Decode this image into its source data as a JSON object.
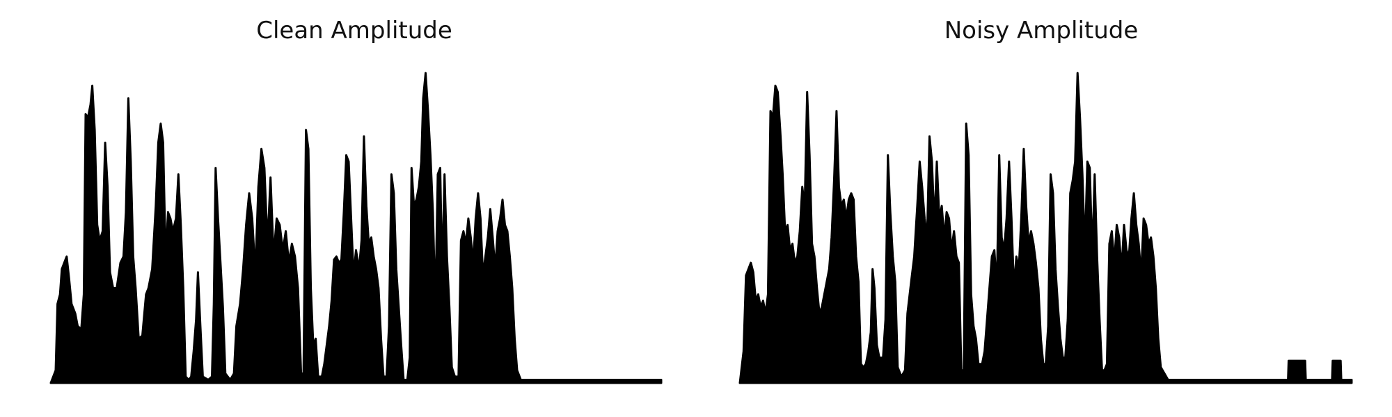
{
  "chart_data": [
    {
      "type": "area",
      "title": "Clean Amplitude",
      "xlabel": "",
      "ylabel": "",
      "grid": false,
      "axes_visible": false,
      "x_range": [
        0,
        1
      ],
      "ylim": [
        0,
        1
      ],
      "color": "#000000",
      "envelope": [
        [
          0.0,
          0.0
        ],
        [
          0.008,
          0.04
        ],
        [
          0.011,
          0.25
        ],
        [
          0.015,
          0.28
        ],
        [
          0.018,
          0.36
        ],
        [
          0.022,
          0.38
        ],
        [
          0.026,
          0.4
        ],
        [
          0.03,
          0.33
        ],
        [
          0.034,
          0.25
        ],
        [
          0.04,
          0.22
        ],
        [
          0.044,
          0.18
        ],
        [
          0.05,
          0.17
        ],
        [
          0.054,
          0.28
        ],
        [
          0.057,
          0.85
        ],
        [
          0.061,
          0.84
        ],
        [
          0.065,
          0.88
        ],
        [
          0.068,
          0.94
        ],
        [
          0.072,
          0.8
        ],
        [
          0.076,
          0.5
        ],
        [
          0.08,
          0.45
        ],
        [
          0.085,
          0.48
        ],
        [
          0.089,
          0.76
        ],
        [
          0.093,
          0.62
        ],
        [
          0.097,
          0.35
        ],
        [
          0.102,
          0.3
        ],
        [
          0.108,
          0.3
        ],
        [
          0.114,
          0.38
        ],
        [
          0.119,
          0.4
        ],
        [
          0.123,
          0.54
        ],
        [
          0.127,
          0.9
        ],
        [
          0.131,
          0.7
        ],
        [
          0.135,
          0.4
        ],
        [
          0.139,
          0.3
        ],
        [
          0.144,
          0.14
        ],
        [
          0.15,
          0.15
        ],
        [
          0.156,
          0.28
        ],
        [
          0.16,
          0.3
        ],
        [
          0.166,
          0.36
        ],
        [
          0.172,
          0.56
        ],
        [
          0.176,
          0.76
        ],
        [
          0.18,
          0.82
        ],
        [
          0.184,
          0.76
        ],
        [
          0.188,
          0.4
        ],
        [
          0.192,
          0.54
        ],
        [
          0.196,
          0.52
        ],
        [
          0.2,
          0.48
        ],
        [
          0.205,
          0.52
        ],
        [
          0.209,
          0.66
        ],
        [
          0.213,
          0.5
        ],
        [
          0.217,
          0.3
        ],
        [
          0.221,
          0.02
        ],
        [
          0.226,
          0.01
        ],
        [
          0.23,
          0.02
        ],
        [
          0.234,
          0.1
        ],
        [
          0.238,
          0.2
        ],
        [
          0.241,
          0.35
        ],
        [
          0.245,
          0.18
        ],
        [
          0.249,
          0.02
        ],
        [
          0.258,
          0.01
        ],
        [
          0.264,
          0.02
        ],
        [
          0.267,
          0.25
        ],
        [
          0.27,
          0.68
        ],
        [
          0.274,
          0.52
        ],
        [
          0.278,
          0.38
        ],
        [
          0.282,
          0.24
        ],
        [
          0.286,
          0.03
        ],
        [
          0.294,
          0.01
        ],
        [
          0.3,
          0.03
        ],
        [
          0.304,
          0.18
        ],
        [
          0.31,
          0.25
        ],
        [
          0.315,
          0.36
        ],
        [
          0.32,
          0.5
        ],
        [
          0.325,
          0.6
        ],
        [
          0.33,
          0.52
        ],
        [
          0.335,
          0.35
        ],
        [
          0.34,
          0.62
        ],
        [
          0.345,
          0.74
        ],
        [
          0.35,
          0.68
        ],
        [
          0.355,
          0.44
        ],
        [
          0.36,
          0.65
        ],
        [
          0.365,
          0.4
        ],
        [
          0.37,
          0.52
        ],
        [
          0.375,
          0.5
        ],
        [
          0.38,
          0.42
        ],
        [
          0.385,
          0.48
        ],
        [
          0.39,
          0.38
        ],
        [
          0.395,
          0.44
        ],
        [
          0.4,
          0.4
        ],
        [
          0.405,
          0.3
        ],
        [
          0.41,
          0.03
        ],
        [
          0.414,
          0.03
        ],
        [
          0.418,
          0.8
        ],
        [
          0.422,
          0.74
        ],
        [
          0.426,
          0.3
        ],
        [
          0.43,
          0.12
        ],
        [
          0.434,
          0.14
        ],
        [
          0.438,
          0.02
        ],
        [
          0.444,
          0.02
        ],
        [
          0.448,
          0.06
        ],
        [
          0.452,
          0.12
        ],
        [
          0.456,
          0.18
        ],
        [
          0.46,
          0.26
        ],
        [
          0.464,
          0.39
        ],
        [
          0.468,
          0.4
        ],
        [
          0.472,
          0.38
        ],
        [
          0.476,
          0.39
        ],
        [
          0.48,
          0.54
        ],
        [
          0.484,
          0.72
        ],
        [
          0.488,
          0.7
        ],
        [
          0.492,
          0.52
        ],
        [
          0.496,
          0.34
        ],
        [
          0.5,
          0.42
        ],
        [
          0.505,
          0.36
        ],
        [
          0.509,
          0.45
        ],
        [
          0.513,
          0.78
        ],
        [
          0.517,
          0.56
        ],
        [
          0.521,
          0.44
        ],
        [
          0.525,
          0.46
        ],
        [
          0.529,
          0.4
        ],
        [
          0.533,
          0.36
        ],
        [
          0.537,
          0.3
        ],
        [
          0.541,
          0.14
        ],
        [
          0.545,
          0.02
        ],
        [
          0.55,
          0.02
        ],
        [
          0.554,
          0.18
        ],
        [
          0.558,
          0.66
        ],
        [
          0.562,
          0.6
        ],
        [
          0.566,
          0.36
        ],
        [
          0.57,
          0.24
        ],
        [
          0.574,
          0.12
        ],
        [
          0.578,
          0.01
        ],
        [
          0.584,
          0.01
        ],
        [
          0.588,
          0.08
        ],
        [
          0.591,
          0.68
        ],
        [
          0.595,
          0.56
        ],
        [
          0.599,
          0.58
        ],
        [
          0.603,
          0.62
        ],
        [
          0.607,
          0.7
        ],
        [
          0.61,
          0.9
        ],
        [
          0.614,
          0.98
        ],
        [
          0.618,
          0.86
        ],
        [
          0.622,
          0.72
        ],
        [
          0.626,
          0.54
        ],
        [
          0.63,
          0.24
        ],
        [
          0.634,
          0.66
        ],
        [
          0.638,
          0.68
        ],
        [
          0.641,
          0.34
        ],
        [
          0.645,
          0.66
        ],
        [
          0.649,
          0.4
        ],
        [
          0.653,
          0.24
        ],
        [
          0.657,
          0.05
        ],
        [
          0.662,
          0.02
        ],
        [
          0.668,
          0.02
        ],
        [
          0.672,
          0.45
        ],
        [
          0.676,
          0.48
        ],
        [
          0.68,
          0.44
        ],
        [
          0.684,
          0.52
        ],
        [
          0.688,
          0.46
        ],
        [
          0.692,
          0.38
        ],
        [
          0.696,
          0.52
        ],
        [
          0.7,
          0.6
        ],
        [
          0.704,
          0.52
        ],
        [
          0.708,
          0.34
        ],
        [
          0.712,
          0.4
        ],
        [
          0.716,
          0.46
        ],
        [
          0.72,
          0.55
        ],
        [
          0.724,
          0.46
        ],
        [
          0.728,
          0.36
        ],
        [
          0.732,
          0.48
        ],
        [
          0.736,
          0.52
        ],
        [
          0.74,
          0.58
        ],
        [
          0.744,
          0.5
        ],
        [
          0.748,
          0.48
        ],
        [
          0.752,
          0.4
        ],
        [
          0.756,
          0.3
        ],
        [
          0.76,
          0.14
        ],
        [
          0.764,
          0.04
        ],
        [
          0.77,
          0.01
        ],
        [
          0.78,
          0.01
        ],
        [
          0.8,
          0.01
        ],
        [
          0.85,
          0.01
        ],
        [
          0.9,
          0.01
        ],
        [
          0.95,
          0.01
        ],
        [
          1.0,
          0.01
        ]
      ]
    },
    {
      "type": "area",
      "title": "Noisy Amplitude",
      "xlabel": "",
      "ylabel": "",
      "grid": false,
      "axes_visible": false,
      "x_range": [
        0,
        1
      ],
      "ylim": [
        0,
        1
      ],
      "color": "#000000",
      "envelope": [
        [
          0.0,
          0.0
        ],
        [
          0.006,
          0.1
        ],
        [
          0.01,
          0.34
        ],
        [
          0.014,
          0.36
        ],
        [
          0.018,
          0.38
        ],
        [
          0.022,
          0.35
        ],
        [
          0.026,
          0.26
        ],
        [
          0.03,
          0.28
        ],
        [
          0.034,
          0.24
        ],
        [
          0.038,
          0.26
        ],
        [
          0.042,
          0.22
        ],
        [
          0.046,
          0.28
        ],
        [
          0.05,
          0.86
        ],
        [
          0.054,
          0.84
        ],
        [
          0.058,
          0.94
        ],
        [
          0.062,
          0.92
        ],
        [
          0.066,
          0.8
        ],
        [
          0.07,
          0.66
        ],
        [
          0.074,
          0.48
        ],
        [
          0.078,
          0.5
        ],
        [
          0.082,
          0.42
        ],
        [
          0.086,
          0.44
        ],
        [
          0.09,
          0.38
        ],
        [
          0.094,
          0.4
        ],
        [
          0.098,
          0.48
        ],
        [
          0.102,
          0.62
        ],
        [
          0.106,
          0.56
        ],
        [
          0.11,
          0.92
        ],
        [
          0.114,
          0.72
        ],
        [
          0.118,
          0.44
        ],
        [
          0.122,
          0.4
        ],
        [
          0.126,
          0.3
        ],
        [
          0.13,
          0.22
        ],
        [
          0.134,
          0.24
        ],
        [
          0.138,
          0.28
        ],
        [
          0.142,
          0.32
        ],
        [
          0.146,
          0.36
        ],
        [
          0.15,
          0.46
        ],
        [
          0.154,
          0.64
        ],
        [
          0.158,
          0.86
        ],
        [
          0.162,
          0.62
        ],
        [
          0.166,
          0.56
        ],
        [
          0.17,
          0.58
        ],
        [
          0.174,
          0.52
        ],
        [
          0.178,
          0.58
        ],
        [
          0.182,
          0.6
        ],
        [
          0.186,
          0.58
        ],
        [
          0.19,
          0.4
        ],
        [
          0.194,
          0.32
        ],
        [
          0.198,
          0.06
        ],
        [
          0.202,
          0.05
        ],
        [
          0.206,
          0.06
        ],
        [
          0.21,
          0.1
        ],
        [
          0.214,
          0.16
        ],
        [
          0.217,
          0.36
        ],
        [
          0.22,
          0.3
        ],
        [
          0.224,
          0.12
        ],
        [
          0.228,
          0.08
        ],
        [
          0.234,
          0.08
        ],
        [
          0.238,
          0.2
        ],
        [
          0.242,
          0.72
        ],
        [
          0.246,
          0.54
        ],
        [
          0.25,
          0.4
        ],
        [
          0.254,
          0.32
        ],
        [
          0.258,
          0.05
        ],
        [
          0.264,
          0.02
        ],
        [
          0.27,
          0.04
        ],
        [
          0.274,
          0.22
        ],
        [
          0.28,
          0.32
        ],
        [
          0.285,
          0.4
        ],
        [
          0.29,
          0.56
        ],
        [
          0.294,
          0.7
        ],
        [
          0.298,
          0.62
        ],
        [
          0.302,
          0.52
        ],
        [
          0.306,
          0.46
        ],
        [
          0.31,
          0.78
        ],
        [
          0.314,
          0.7
        ],
        [
          0.318,
          0.5
        ],
        [
          0.322,
          0.7
        ],
        [
          0.326,
          0.52
        ],
        [
          0.33,
          0.56
        ],
        [
          0.334,
          0.46
        ],
        [
          0.338,
          0.54
        ],
        [
          0.342,
          0.52
        ],
        [
          0.346,
          0.42
        ],
        [
          0.35,
          0.48
        ],
        [
          0.354,
          0.4
        ],
        [
          0.358,
          0.38
        ],
        [
          0.362,
          0.04
        ],
        [
          0.366,
          0.04
        ],
        [
          0.37,
          0.82
        ],
        [
          0.374,
          0.72
        ],
        [
          0.378,
          0.28
        ],
        [
          0.382,
          0.18
        ],
        [
          0.386,
          0.14
        ],
        [
          0.39,
          0.06
        ],
        [
          0.396,
          0.06
        ],
        [
          0.4,
          0.1
        ],
        [
          0.404,
          0.2
        ],
        [
          0.408,
          0.3
        ],
        [
          0.412,
          0.4
        ],
        [
          0.416,
          0.42
        ],
        [
          0.42,
          0.3
        ],
        [
          0.424,
          0.72
        ],
        [
          0.428,
          0.46
        ],
        [
          0.432,
          0.42
        ],
        [
          0.436,
          0.52
        ],
        [
          0.44,
          0.7
        ],
        [
          0.444,
          0.52
        ],
        [
          0.448,
          0.3
        ],
        [
          0.452,
          0.4
        ],
        [
          0.456,
          0.36
        ],
        [
          0.46,
          0.52
        ],
        [
          0.464,
          0.74
        ],
        [
          0.468,
          0.56
        ],
        [
          0.472,
          0.44
        ],
        [
          0.476,
          0.48
        ],
        [
          0.48,
          0.44
        ],
        [
          0.484,
          0.38
        ],
        [
          0.488,
          0.3
        ],
        [
          0.492,
          0.14
        ],
        [
          0.496,
          0.06
        ],
        [
          0.5,
          0.06
        ],
        [
          0.504,
          0.18
        ],
        [
          0.508,
          0.66
        ],
        [
          0.512,
          0.6
        ],
        [
          0.516,
          0.36
        ],
        [
          0.52,
          0.24
        ],
        [
          0.524,
          0.14
        ],
        [
          0.528,
          0.08
        ],
        [
          0.532,
          0.08
        ],
        [
          0.536,
          0.2
        ],
        [
          0.54,
          0.6
        ],
        [
          0.544,
          0.64
        ],
        [
          0.548,
          0.7
        ],
        [
          0.552,
          0.98
        ],
        [
          0.556,
          0.84
        ],
        [
          0.56,
          0.66
        ],
        [
          0.564,
          0.42
        ],
        [
          0.568,
          0.7
        ],
        [
          0.572,
          0.68
        ],
        [
          0.576,
          0.4
        ],
        [
          0.58,
          0.66
        ],
        [
          0.584,
          0.4
        ],
        [
          0.588,
          0.2
        ],
        [
          0.592,
          0.04
        ],
        [
          0.596,
          0.04
        ],
        [
          0.6,
          0.06
        ],
        [
          0.604,
          0.44
        ],
        [
          0.608,
          0.48
        ],
        [
          0.612,
          0.38
        ],
        [
          0.616,
          0.5
        ],
        [
          0.62,
          0.46
        ],
        [
          0.624,
          0.36
        ],
        [
          0.628,
          0.5
        ],
        [
          0.632,
          0.42
        ],
        [
          0.636,
          0.4
        ],
        [
          0.64,
          0.52
        ],
        [
          0.644,
          0.6
        ],
        [
          0.648,
          0.5
        ],
        [
          0.652,
          0.44
        ],
        [
          0.656,
          0.34
        ],
        [
          0.66,
          0.52
        ],
        [
          0.664,
          0.5
        ],
        [
          0.668,
          0.44
        ],
        [
          0.672,
          0.46
        ],
        [
          0.676,
          0.4
        ],
        [
          0.68,
          0.3
        ],
        [
          0.684,
          0.14
        ],
        [
          0.688,
          0.05
        ],
        [
          0.7,
          0.01
        ],
        [
          0.75,
          0.01
        ],
        [
          0.8,
          0.01
        ],
        [
          0.82,
          0.01
        ],
        [
          0.896,
          0.01
        ],
        [
          0.897,
          0.07
        ],
        [
          0.924,
          0.07
        ],
        [
          0.925,
          0.01
        ],
        [
          0.968,
          0.01
        ],
        [
          0.969,
          0.07
        ],
        [
          0.982,
          0.07
        ],
        [
          0.983,
          0.01
        ],
        [
          1.0,
          0.01
        ]
      ]
    }
  ]
}
